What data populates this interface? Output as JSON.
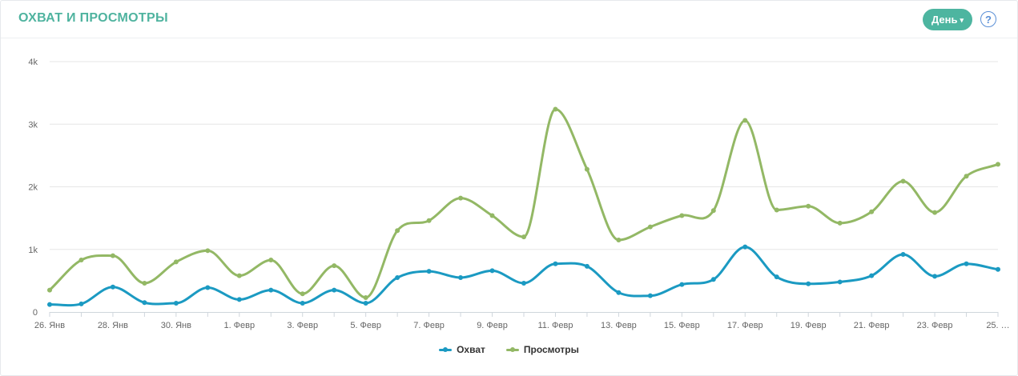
{
  "header": {
    "title": "ОХВАТ И ПРОСМОТРЫ",
    "period_button": "День",
    "help": "?"
  },
  "colors": {
    "reach": "#1b9ac2",
    "views": "#93b865",
    "title": "#4fb39f",
    "button": "#4db5a0"
  },
  "chart_data": {
    "type": "line",
    "x": [
      "26. Янв",
      "27. Янв",
      "28. Янв",
      "29. Янв",
      "30. Янв",
      "31. Янв",
      "1. Февр",
      "2. Февр",
      "3. Февр",
      "4. Февр",
      "5. Февр",
      "6. Февр",
      "7. Февр",
      "8. Февр",
      "9. Февр",
      "10. Февр",
      "11. Февр",
      "12. Февр",
      "13. Февр",
      "14. Февр",
      "15. Февр",
      "16. Февр",
      "17. Февр",
      "18. Февр",
      "19. Февр",
      "20. Февр",
      "21. Февр",
      "22. Февр",
      "23. Февр",
      "24. Февр",
      "25. Февр"
    ],
    "tick_labels": [
      "26. Янв",
      "28. Янв",
      "30. Янв",
      "1. Февр",
      "3. Февр",
      "5. Февр",
      "7. Февр",
      "9. Февр",
      "11. Февр",
      "13. Февр",
      "15. Февр",
      "17. Февр",
      "19. Февр",
      "21. Февр",
      "23. Февр",
      "25. …"
    ],
    "y_ticks": [
      "0",
      "1k",
      "2k",
      "3k",
      "4k"
    ],
    "ylim": [
      0,
      4000
    ],
    "grid": true,
    "legend_position": "bottom-center",
    "series": [
      {
        "name": "Охват",
        "color": "#1b9ac2",
        "values": [
          120,
          130,
          400,
          150,
          140,
          390,
          200,
          350,
          140,
          350,
          140,
          550,
          650,
          550,
          660,
          460,
          770,
          730,
          310,
          260,
          440,
          520,
          1040,
          560,
          450,
          480,
          580,
          920,
          570,
          770,
          680
        ]
      },
      {
        "name": "Просмотры",
        "color": "#93b865",
        "values": [
          350,
          830,
          900,
          460,
          800,
          980,
          580,
          830,
          290,
          740,
          230,
          1300,
          1460,
          1820,
          1540,
          1200,
          3240,
          2280,
          1150,
          1360,
          1540,
          1620,
          3060,
          1630,
          1690,
          1420,
          1600,
          2090,
          1590,
          2170,
          2360
        ]
      }
    ]
  }
}
